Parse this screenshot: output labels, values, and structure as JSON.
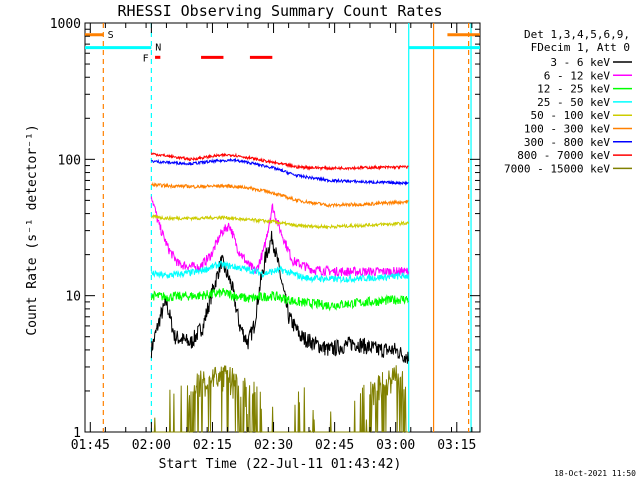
{
  "chart_data": {
    "type": "line",
    "title": "RHESSI Observing Summary Count Rates",
    "xlabel": "Start Time (22-Jul-11 01:43:42)",
    "ylabel": "Count Rate (s⁻¹ detector⁻¹)",
    "yscale": "log",
    "ylim": [
      1,
      1000
    ],
    "xlim_minutes": [
      0,
      97
    ],
    "x_ticks": [
      {
        "label": "01:45",
        "minute": 1.3
      },
      {
        "label": "02:00",
        "minute": 16.3
      },
      {
        "label": "02:15",
        "minute": 31.3
      },
      {
        "label": "02:30",
        "minute": 46.3
      },
      {
        "label": "02:45",
        "minute": 61.3
      },
      {
        "label": "03:00",
        "minute": 76.3
      },
      {
        "label": "03:15",
        "minute": 91.3
      }
    ],
    "y_ticks": [
      {
        "label": "1",
        "value": 1
      },
      {
        "label": "10",
        "value": 10
      },
      {
        "label": "100",
        "value": 100
      },
      {
        "label": "1000",
        "value": 1000
      }
    ],
    "legend_header": [
      "Det 1,3,4,5,6,9,",
      "FDecim 1, Att 0"
    ],
    "legend_position": "right",
    "series": [
      {
        "name": "3 - 6 keV",
        "color": "#000000",
        "x": [
          16.3,
          18.5,
          20,
          22,
          26,
          29,
          31,
          33.5,
          36,
          38,
          40,
          41.5,
          43,
          44.5,
          46,
          48,
          50,
          53,
          56,
          60,
          66,
          72,
          76,
          79.5
        ],
        "values": [
          4,
          7,
          9,
          5,
          4.5,
          6,
          10,
          18,
          12,
          6,
          4.5,
          6,
          12,
          20,
          27,
          14,
          7,
          5,
          4.5,
          4,
          4.5,
          4,
          4,
          3.5
        ]
      },
      {
        "name": "6 - 12 keV",
        "color": "#ff00ff",
        "x": [
          16.3,
          18,
          20.5,
          23,
          28,
          31,
          33.5,
          35.5,
          37.5,
          40,
          42,
          44,
          46,
          48,
          51,
          56,
          62,
          70,
          79.5
        ],
        "values": [
          55,
          34,
          22,
          17,
          16,
          20,
          29,
          33,
          22,
          17,
          15,
          22,
          45,
          30,
          18,
          15.5,
          15,
          15,
          15
        ]
      },
      {
        "name": "12 - 25 keV",
        "color": "#00ff00",
        "x": [
          16.3,
          20,
          28,
          34,
          40,
          46,
          52,
          60,
          70,
          79.5
        ],
        "values": [
          10,
          9.8,
          10,
          10.5,
          9.5,
          10,
          9,
          8.5,
          9,
          9.5
        ]
      },
      {
        "name": "25 - 50 keV",
        "color": "#00ffff",
        "x": [
          16.3,
          20,
          28,
          33,
          38,
          44,
          48,
          54,
          62,
          70,
          79.5
        ],
        "values": [
          14.5,
          14,
          15,
          17,
          16,
          14.5,
          15.5,
          13.5,
          13.2,
          13.5,
          14
        ]
      },
      {
        "name": "50 - 100 keV",
        "color": "#cccc00",
        "x": [
          16.3,
          20,
          28,
          34,
          40,
          46,
          52,
          60,
          70,
          79.5
        ],
        "values": [
          38,
          37,
          37,
          37.5,
          36,
          35,
          32.5,
          32,
          33,
          34
        ]
      },
      {
        "name": "100 - 300 keV",
        "color": "#ff8000",
        "x": [
          16.3,
          20,
          28,
          34,
          40,
          46,
          52,
          60,
          70,
          79.5
        ],
        "values": [
          65,
          64,
          63,
          64,
          62,
          57,
          50,
          46,
          47,
          49
        ]
      },
      {
        "name": "300 - 800 keV",
        "color": "#0000ff",
        "x": [
          16.3,
          20,
          26,
          32,
          36,
          40,
          46,
          52,
          60,
          70,
          79.5
        ],
        "values": [
          97,
          95,
          93,
          97,
          99,
          95,
          87,
          76,
          70,
          68,
          67
        ]
      },
      {
        "name": "800 - 7000 keV",
        "color": "#ff0000",
        "x": [
          16.3,
          20,
          26,
          32,
          36,
          40,
          46,
          52,
          60,
          70,
          79.5
        ],
        "values": [
          110,
          106,
          100,
          106,
          108,
          103,
          95,
          88,
          86,
          87,
          88
        ]
      },
      {
        "name": "7000 - 15000 keV",
        "color": "#808000",
        "x": [
          16.3,
          20,
          24,
          28,
          32,
          36,
          40,
          46,
          52,
          58,
          66,
          72,
          74,
          76,
          78,
          79.5
        ],
        "values": [
          1,
          1,
          1,
          1.6,
          2,
          1.8,
          1.3,
          1,
          1,
          1,
          1,
          1.5,
          1.8,
          2,
          1.6,
          1
        ]
      }
    ],
    "flag_bars": [
      {
        "label": "",
        "color": "#ff8000",
        "x": [
          0,
          4.5
        ],
        "y_value": 820
      },
      {
        "label": "",
        "color": "#00ffff",
        "x": [
          0,
          16.3
        ],
        "y_value": 660
      },
      {
        "label": "",
        "color": "#ff8000",
        "x": [
          89,
          97
        ],
        "y_value": 820
      },
      {
        "label": "",
        "color": "#00ffff",
        "x": [
          79.5,
          97
        ],
        "y_value": 660
      },
      {
        "label": "",
        "color": "#ff0000",
        "x": [
          17.2,
          18.5
        ],
        "y_value": 560
      },
      {
        "label": "",
        "color": "#ff0000",
        "x": [
          28.5,
          34
        ],
        "y_value": 560
      },
      {
        "label": "",
        "color": "#ff0000",
        "x": [
          40.5,
          46
        ],
        "y_value": 560
      }
    ],
    "event_lines": [
      {
        "color": "#ff8000",
        "style": "dashed",
        "minute": 4.5
      },
      {
        "color": "#00ffff",
        "style": "dashed",
        "minute": 16.3
      },
      {
        "color": "#00ffff",
        "style": "solid",
        "minute": 79.5
      },
      {
        "color": "#ff8000",
        "style": "solid",
        "minute": 85.6
      },
      {
        "color": "#ff8000",
        "style": "dashed",
        "minute": 94.2
      },
      {
        "color": "#00ffff",
        "style": "solid",
        "minute": 94.8
      }
    ],
    "flag_labels": [
      {
        "text": "S",
        "color": "#ff8000",
        "minute": 6.3,
        "value": 830
      },
      {
        "text": "N",
        "color": "#00ffff",
        "minute": 18.0,
        "value": 670
      },
      {
        "text": "F",
        "color": "#ff0000",
        "minute": 14.9,
        "value": 560
      }
    ]
  },
  "footer": {
    "timestamp": "18-Oct-2021 11:50"
  }
}
